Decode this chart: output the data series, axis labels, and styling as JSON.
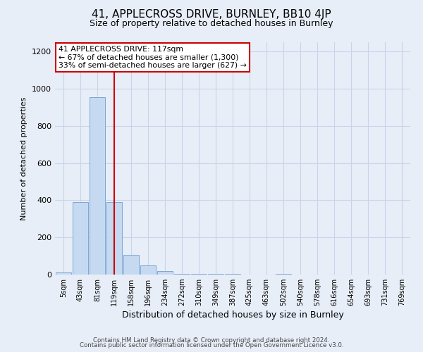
{
  "title": "41, APPLECROSS DRIVE, BURNLEY, BB10 4JP",
  "subtitle": "Size of property relative to detached houses in Burnley",
  "xlabel": "Distribution of detached houses by size in Burnley",
  "ylabel": "Number of detached properties",
  "bar_labels": [
    "5sqm",
    "43sqm",
    "81sqm",
    "119sqm",
    "158sqm",
    "196sqm",
    "234sqm",
    "272sqm",
    "310sqm",
    "349sqm",
    "387sqm",
    "425sqm",
    "463sqm",
    "502sqm",
    "540sqm",
    "578sqm",
    "616sqm",
    "654sqm",
    "693sqm",
    "731sqm",
    "769sqm"
  ],
  "bar_heights": [
    10,
    390,
    955,
    390,
    105,
    50,
    20,
    5,
    5,
    5,
    5,
    0,
    0,
    5,
    0,
    0,
    0,
    0,
    0,
    0,
    0
  ],
  "bar_color": "#c5d9f1",
  "bar_edge_color": "#7BA7D4",
  "marker_label": "41 APPLECROSS DRIVE: 117sqm",
  "annotation_line1": "← 67% of detached houses are smaller (1,300)",
  "annotation_line2": "33% of semi-detached houses are larger (627) →",
  "annotation_box_color": "#ffffff",
  "annotation_box_edge_color": "#cc0000",
  "vline_color": "#cc0000",
  "vline_x": 3,
  "ylim": [
    0,
    1250
  ],
  "yticks": [
    0,
    200,
    400,
    600,
    800,
    1000,
    1200
  ],
  "grid_color": "#c8d4e8",
  "background_color": "#e8eef8",
  "footer_line1": "Contains HM Land Registry data © Crown copyright and database right 2024.",
  "footer_line2": "Contains public sector information licensed under the Open Government Licence v3.0."
}
